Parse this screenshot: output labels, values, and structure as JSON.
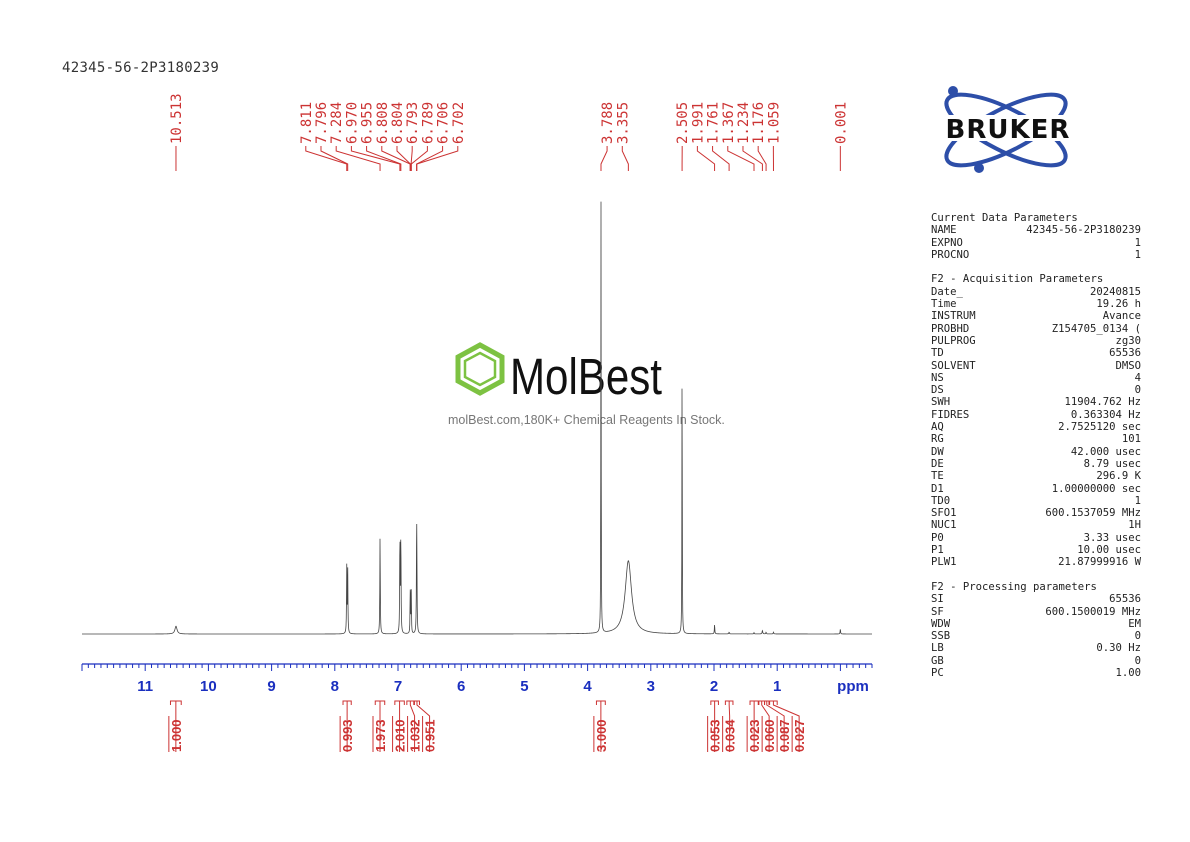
{
  "header": {
    "sample_id": "42345-56-2P3180239"
  },
  "logos": {
    "bruker": "BRUKER",
    "watermark_brand": "MolBest",
    "watermark_tagline": "molBest.com,180K+ Chemical Reagents In Stock.",
    "bruker_color": "#2d4ea8",
    "molbest_green": "#7dc242"
  },
  "colors": {
    "peak_label": "#cc3333",
    "axis": "#1a2fbf",
    "spectrum": "#444444"
  },
  "chart_data": {
    "type": "line",
    "title": "",
    "xlabel": "ppm",
    "ylabel": "",
    "xlim": [
      12.0,
      -0.5
    ],
    "x_reversed": true,
    "x_ticks": [
      11,
      10,
      9,
      8,
      7,
      6,
      5,
      4,
      3,
      2,
      1
    ],
    "x_unit_label": "ppm",
    "peak_labels": [
      "10.513",
      "7.811",
      "7.796",
      "7.284",
      "6.970",
      "6.955",
      "6.808",
      "6.804",
      "6.793",
      "6.789",
      "6.706",
      "6.702",
      "3.788",
      "3.355",
      "2.505",
      "1.991",
      "1.761",
      "1.367",
      "1.234",
      "1.176",
      "1.059",
      "0.001"
    ],
    "peaks": [
      {
        "shift": 10.513,
        "height": 0.018,
        "width": 0.02
      },
      {
        "shift": 7.811,
        "height": 0.153,
        "width": 0.004
      },
      {
        "shift": 7.796,
        "height": 0.153,
        "width": 0.004
      },
      {
        "shift": 7.284,
        "height": 0.23,
        "width": 0.004
      },
      {
        "shift": 6.97,
        "height": 0.228,
        "width": 0.004
      },
      {
        "shift": 6.955,
        "height": 0.228,
        "width": 0.004
      },
      {
        "shift": 6.808,
        "height": 0.07,
        "width": 0.003
      },
      {
        "shift": 6.804,
        "height": 0.07,
        "width": 0.003
      },
      {
        "shift": 6.793,
        "height": 0.07,
        "width": 0.003
      },
      {
        "shift": 6.789,
        "height": 0.07,
        "width": 0.003
      },
      {
        "shift": 6.706,
        "height": 0.16,
        "width": 0.004
      },
      {
        "shift": 6.702,
        "height": 0.16,
        "width": 0.004
      },
      {
        "shift": 3.788,
        "height": 1.0,
        "width": 0.003
      },
      {
        "shift": 3.355,
        "height": 0.17,
        "width": 0.06
      },
      {
        "shift": 2.505,
        "height": 0.68,
        "width": 0.003
      },
      {
        "shift": 1.991,
        "height": 0.022,
        "width": 0.004
      },
      {
        "shift": 1.761,
        "height": 0.004,
        "width": 0.005
      },
      {
        "shift": 1.367,
        "height": 0.003,
        "width": 0.005
      },
      {
        "shift": 1.234,
        "height": 0.008,
        "width": 0.006
      },
      {
        "shift": 1.176,
        "height": 0.004,
        "width": 0.005
      },
      {
        "shift": 1.059,
        "height": 0.004,
        "width": 0.005
      },
      {
        "shift": 0.001,
        "height": 0.012,
        "width": 0.004
      }
    ],
    "integrals": [
      {
        "from": 10.6,
        "to": 10.43,
        "value": "1.000"
      },
      {
        "from": 7.87,
        "to": 7.74,
        "value": "0.993"
      },
      {
        "from": 7.36,
        "to": 7.21,
        "value": "1.973"
      },
      {
        "from": 7.05,
        "to": 6.9,
        "value": "2.010"
      },
      {
        "from": 6.86,
        "to": 6.75,
        "value": "1.032"
      },
      {
        "from": 6.74,
        "to": 6.66,
        "value": "0.951"
      },
      {
        "from": 3.86,
        "to": 3.72,
        "value": "3.000"
      },
      {
        "from": 2.05,
        "to": 1.93,
        "value": "0.053"
      },
      {
        "from": 1.82,
        "to": 1.7,
        "value": "0.034"
      },
      {
        "from": 1.43,
        "to": 1.3,
        "value": "0.023"
      },
      {
        "from": 1.29,
        "to": 1.2,
        "value": "0.060"
      },
      {
        "from": 1.2,
        "to": 1.13,
        "value": "0.087"
      },
      {
        "from": 1.12,
        "to": 1.0,
        "value": "0.027"
      }
    ]
  },
  "parameters": [
    {
      "title": "Current Data Parameters",
      "rows": [
        {
          "k": "NAME",
          "v": "42345-56-2P3180239"
        },
        {
          "k": "EXPNO",
          "v": "1"
        },
        {
          "k": "PROCNO",
          "v": "1"
        }
      ]
    },
    {
      "title": "F2 - Acquisition Parameters",
      "rows": [
        {
          "k": "Date_",
          "v": "20240815"
        },
        {
          "k": "Time",
          "v": "19.26 h"
        },
        {
          "k": "INSTRUM",
          "v": "Avance"
        },
        {
          "k": "PROBHD",
          "v": "Z154705_0134 ("
        },
        {
          "k": "PULPROG",
          "v": "zg30"
        },
        {
          "k": "TD",
          "v": "65536"
        },
        {
          "k": "SOLVENT",
          "v": "DMSO"
        },
        {
          "k": "NS",
          "v": "4"
        },
        {
          "k": "DS",
          "v": "0"
        },
        {
          "k": "SWH",
          "v": "11904.762 Hz"
        },
        {
          "k": "FIDRES",
          "v": "0.363304 Hz"
        },
        {
          "k": "AQ",
          "v": "2.7525120 sec"
        },
        {
          "k": "RG",
          "v": "101"
        },
        {
          "k": "DW",
          "v": "42.000 usec"
        },
        {
          "k": "DE",
          "v": "8.79 usec"
        },
        {
          "k": "TE",
          "v": "296.9 K"
        },
        {
          "k": "D1",
          "v": "1.00000000 sec"
        },
        {
          "k": "TD0",
          "v": "1"
        },
        {
          "k": "SFO1",
          "v": "600.1537059 MHz"
        },
        {
          "k": "NUC1",
          "v": "1H"
        },
        {
          "k": "P0",
          "v": "3.33 usec"
        },
        {
          "k": "P1",
          "v": "10.00 usec"
        },
        {
          "k": "PLW1",
          "v": "21.87999916 W"
        }
      ]
    },
    {
      "title": "F2 - Processing parameters",
      "rows": [
        {
          "k": "SI",
          "v": "65536"
        },
        {
          "k": "SF",
          "v": "600.1500019 MHz"
        },
        {
          "k": "WDW",
          "v": "EM"
        },
        {
          "k": "SSB",
          "v": "0"
        },
        {
          "k": "LB",
          "v": "0.30 Hz"
        },
        {
          "k": "GB",
          "v": "0"
        },
        {
          "k": "PC",
          "v": "1.00"
        }
      ]
    }
  ]
}
